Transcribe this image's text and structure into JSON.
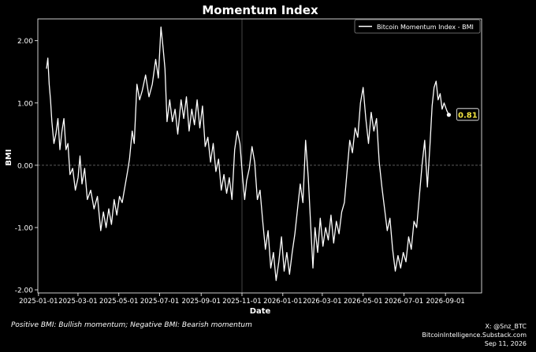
{
  "chart_data": {
    "type": "line",
    "title": "Momentum Index",
    "xlabel": "Date",
    "ylabel": "BMI",
    "xlim": [
      "2024-12-31",
      "2026-10-25"
    ],
    "ylim": [
      -2.05,
      2.35
    ],
    "yticks": [
      -2.0,
      -1.0,
      0.0,
      1.0,
      2.0
    ],
    "ytick_labels": [
      "-2.00",
      "-1.00",
      "0.00",
      "1.00",
      "2.00"
    ],
    "xticks": [
      "2025-01-01",
      "2025-03-01",
      "2025-05-01",
      "2025-07-01",
      "2025-09-01",
      "2025-11-01",
      "2026-01-01",
      "2026-03-01",
      "2026-05-01",
      "2026-07-01",
      "2026-09-01"
    ],
    "grid": false,
    "zero_line": true,
    "vertical_marker_date": "2025-11-01",
    "legend": {
      "position": "top-right",
      "entries": [
        "Bitcoin Momentum Index - BMI"
      ]
    },
    "last_value_label": "0.81",
    "series": [
      {
        "name": "Bitcoin Momentum Index - BMI",
        "color": "#ffffff",
        "points": [
          [
            "2025-01-13",
            1.55
          ],
          [
            "2025-01-15",
            1.72
          ],
          [
            "2025-01-17",
            1.3
          ],
          [
            "2025-01-19",
            1.05
          ],
          [
            "2025-01-21",
            0.7
          ],
          [
            "2025-01-24",
            0.35
          ],
          [
            "2025-01-27",
            0.5
          ],
          [
            "2025-01-30",
            0.75
          ],
          [
            "2025-02-02",
            0.25
          ],
          [
            "2025-02-05",
            0.55
          ],
          [
            "2025-02-08",
            0.75
          ],
          [
            "2025-02-11",
            0.25
          ],
          [
            "2025-02-14",
            0.35
          ],
          [
            "2025-02-17",
            -0.15
          ],
          [
            "2025-02-21",
            -0.05
          ],
          [
            "2025-02-25",
            -0.4
          ],
          [
            "2025-03-01",
            -0.2
          ],
          [
            "2025-03-04",
            0.15
          ],
          [
            "2025-03-07",
            -0.3
          ],
          [
            "2025-03-11",
            -0.05
          ],
          [
            "2025-03-15",
            -0.55
          ],
          [
            "2025-03-20",
            -0.4
          ],
          [
            "2025-03-25",
            -0.7
          ],
          [
            "2025-03-30",
            -0.5
          ],
          [
            "2025-04-04",
            -1.05
          ],
          [
            "2025-04-08",
            -0.75
          ],
          [
            "2025-04-12",
            -1.0
          ],
          [
            "2025-04-16",
            -0.7
          ],
          [
            "2025-04-20",
            -0.95
          ],
          [
            "2025-04-24",
            -0.55
          ],
          [
            "2025-04-28",
            -0.8
          ],
          [
            "2025-05-02",
            -0.5
          ],
          [
            "2025-05-06",
            -0.6
          ],
          [
            "2025-05-10",
            -0.35
          ],
          [
            "2025-05-14",
            -0.1
          ],
          [
            "2025-05-17",
            0.1
          ],
          [
            "2025-05-21",
            0.55
          ],
          [
            "2025-05-24",
            0.35
          ],
          [
            "2025-05-28",
            1.3
          ],
          [
            "2025-06-01",
            1.05
          ],
          [
            "2025-06-05",
            1.2
          ],
          [
            "2025-06-10",
            1.45
          ],
          [
            "2025-06-15",
            1.1
          ],
          [
            "2025-06-20",
            1.3
          ],
          [
            "2025-06-25",
            1.7
          ],
          [
            "2025-06-29",
            1.4
          ],
          [
            "2025-07-03",
            2.22
          ],
          [
            "2025-07-06",
            1.9
          ],
          [
            "2025-07-09",
            1.55
          ],
          [
            "2025-07-12",
            0.7
          ],
          [
            "2025-07-16",
            1.05
          ],
          [
            "2025-07-20",
            0.7
          ],
          [
            "2025-07-24",
            0.9
          ],
          [
            "2025-07-28",
            0.5
          ],
          [
            "2025-08-02",
            1.05
          ],
          [
            "2025-08-06",
            0.75
          ],
          [
            "2025-08-10",
            1.1
          ],
          [
            "2025-08-14",
            0.55
          ],
          [
            "2025-08-18",
            0.9
          ],
          [
            "2025-08-22",
            0.65
          ],
          [
            "2025-08-26",
            1.05
          ],
          [
            "2025-08-30",
            0.6
          ],
          [
            "2025-09-03",
            0.95
          ],
          [
            "2025-09-07",
            0.3
          ],
          [
            "2025-09-11",
            0.45
          ],
          [
            "2025-09-15",
            0.05
          ],
          [
            "2025-09-19",
            0.35
          ],
          [
            "2025-09-23",
            -0.1
          ],
          [
            "2025-09-27",
            0.1
          ],
          [
            "2025-10-01",
            -0.4
          ],
          [
            "2025-10-05",
            -0.15
          ],
          [
            "2025-10-09",
            -0.45
          ],
          [
            "2025-10-13",
            -0.2
          ],
          [
            "2025-10-17",
            -0.55
          ],
          [
            "2025-10-21",
            0.25
          ],
          [
            "2025-10-25",
            0.55
          ],
          [
            "2025-10-29",
            0.35
          ],
          [
            "2025-11-02",
            -0.2
          ],
          [
            "2025-11-05",
            -0.55
          ],
          [
            "2025-11-08",
            -0.25
          ],
          [
            "2025-11-12",
            -0.05
          ],
          [
            "2025-11-16",
            0.3
          ],
          [
            "2025-11-20",
            0.05
          ],
          [
            "2025-11-24",
            -0.55
          ],
          [
            "2025-11-28",
            -0.4
          ],
          [
            "2025-12-02",
            -0.9
          ],
          [
            "2025-12-06",
            -1.35
          ],
          [
            "2025-12-10",
            -1.05
          ],
          [
            "2025-12-14",
            -1.65
          ],
          [
            "2025-12-18",
            -1.4
          ],
          [
            "2025-12-22",
            -1.85
          ],
          [
            "2025-12-26",
            -1.55
          ],
          [
            "2025-12-30",
            -1.15
          ],
          [
            "2026-01-03",
            -1.7
          ],
          [
            "2026-01-07",
            -1.4
          ],
          [
            "2026-01-11",
            -1.75
          ],
          [
            "2026-01-15",
            -1.4
          ],
          [
            "2026-01-19",
            -1.1
          ],
          [
            "2026-01-23",
            -0.7
          ],
          [
            "2026-01-27",
            -0.3
          ],
          [
            "2026-01-31",
            -0.6
          ],
          [
            "2026-02-04",
            0.4
          ],
          [
            "2026-02-08",
            -0.2
          ],
          [
            "2026-02-12",
            -1.05
          ],
          [
            "2026-02-15",
            -1.65
          ],
          [
            "2026-02-18",
            -1.0
          ],
          [
            "2026-02-22",
            -1.4
          ],
          [
            "2026-02-26",
            -0.85
          ],
          [
            "2026-03-02",
            -1.3
          ],
          [
            "2026-03-06",
            -1.0
          ],
          [
            "2026-03-10",
            -1.2
          ],
          [
            "2026-03-14",
            -0.8
          ],
          [
            "2026-03-18",
            -1.25
          ],
          [
            "2026-03-22",
            -0.9
          ],
          [
            "2026-03-26",
            -1.1
          ],
          [
            "2026-03-30",
            -0.75
          ],
          [
            "2026-04-03",
            -0.6
          ],
          [
            "2026-04-07",
            -0.1
          ],
          [
            "2026-04-11",
            0.4
          ],
          [
            "2026-04-15",
            0.2
          ],
          [
            "2026-04-19",
            0.6
          ],
          [
            "2026-04-23",
            0.45
          ],
          [
            "2026-04-27",
            1.0
          ],
          [
            "2026-05-01",
            1.25
          ],
          [
            "2026-05-05",
            0.75
          ],
          [
            "2026-05-09",
            0.35
          ],
          [
            "2026-05-13",
            0.85
          ],
          [
            "2026-05-17",
            0.55
          ],
          [
            "2026-05-21",
            0.75
          ],
          [
            "2026-05-25",
            0.05
          ],
          [
            "2026-05-29",
            -0.35
          ],
          [
            "2026-06-02",
            -0.7
          ],
          [
            "2026-06-06",
            -1.05
          ],
          [
            "2026-06-10",
            -0.85
          ],
          [
            "2026-06-14",
            -1.35
          ],
          [
            "2026-06-18",
            -1.7
          ],
          [
            "2026-06-22",
            -1.45
          ],
          [
            "2026-06-26",
            -1.65
          ],
          [
            "2026-06-30",
            -1.4
          ],
          [
            "2026-07-04",
            -1.55
          ],
          [
            "2026-07-08",
            -1.15
          ],
          [
            "2026-07-12",
            -1.35
          ],
          [
            "2026-07-16",
            -0.9
          ],
          [
            "2026-07-20",
            -1.0
          ],
          [
            "2026-07-24",
            -0.5
          ],
          [
            "2026-07-28",
            0.0
          ],
          [
            "2026-08-01",
            0.4
          ],
          [
            "2026-08-05",
            -0.35
          ],
          [
            "2026-08-09",
            0.35
          ],
          [
            "2026-08-12",
            0.95
          ],
          [
            "2026-08-15",
            1.25
          ],
          [
            "2026-08-18",
            1.35
          ],
          [
            "2026-08-21",
            1.05
          ],
          [
            "2026-08-24",
            1.15
          ],
          [
            "2026-08-27",
            0.9
          ],
          [
            "2026-08-30",
            1.0
          ],
          [
            "2026-09-03",
            0.88
          ],
          [
            "2026-09-06",
            0.81
          ]
        ]
      }
    ]
  },
  "footer": {
    "note": "Positive BMI: Bullish momentum; Negative BMI: Bearish momentum",
    "handle": "X: @Snz_BTC",
    "site": "BitcoinIntelligence.Substack.com",
    "date": "Sep 11, 2026"
  }
}
